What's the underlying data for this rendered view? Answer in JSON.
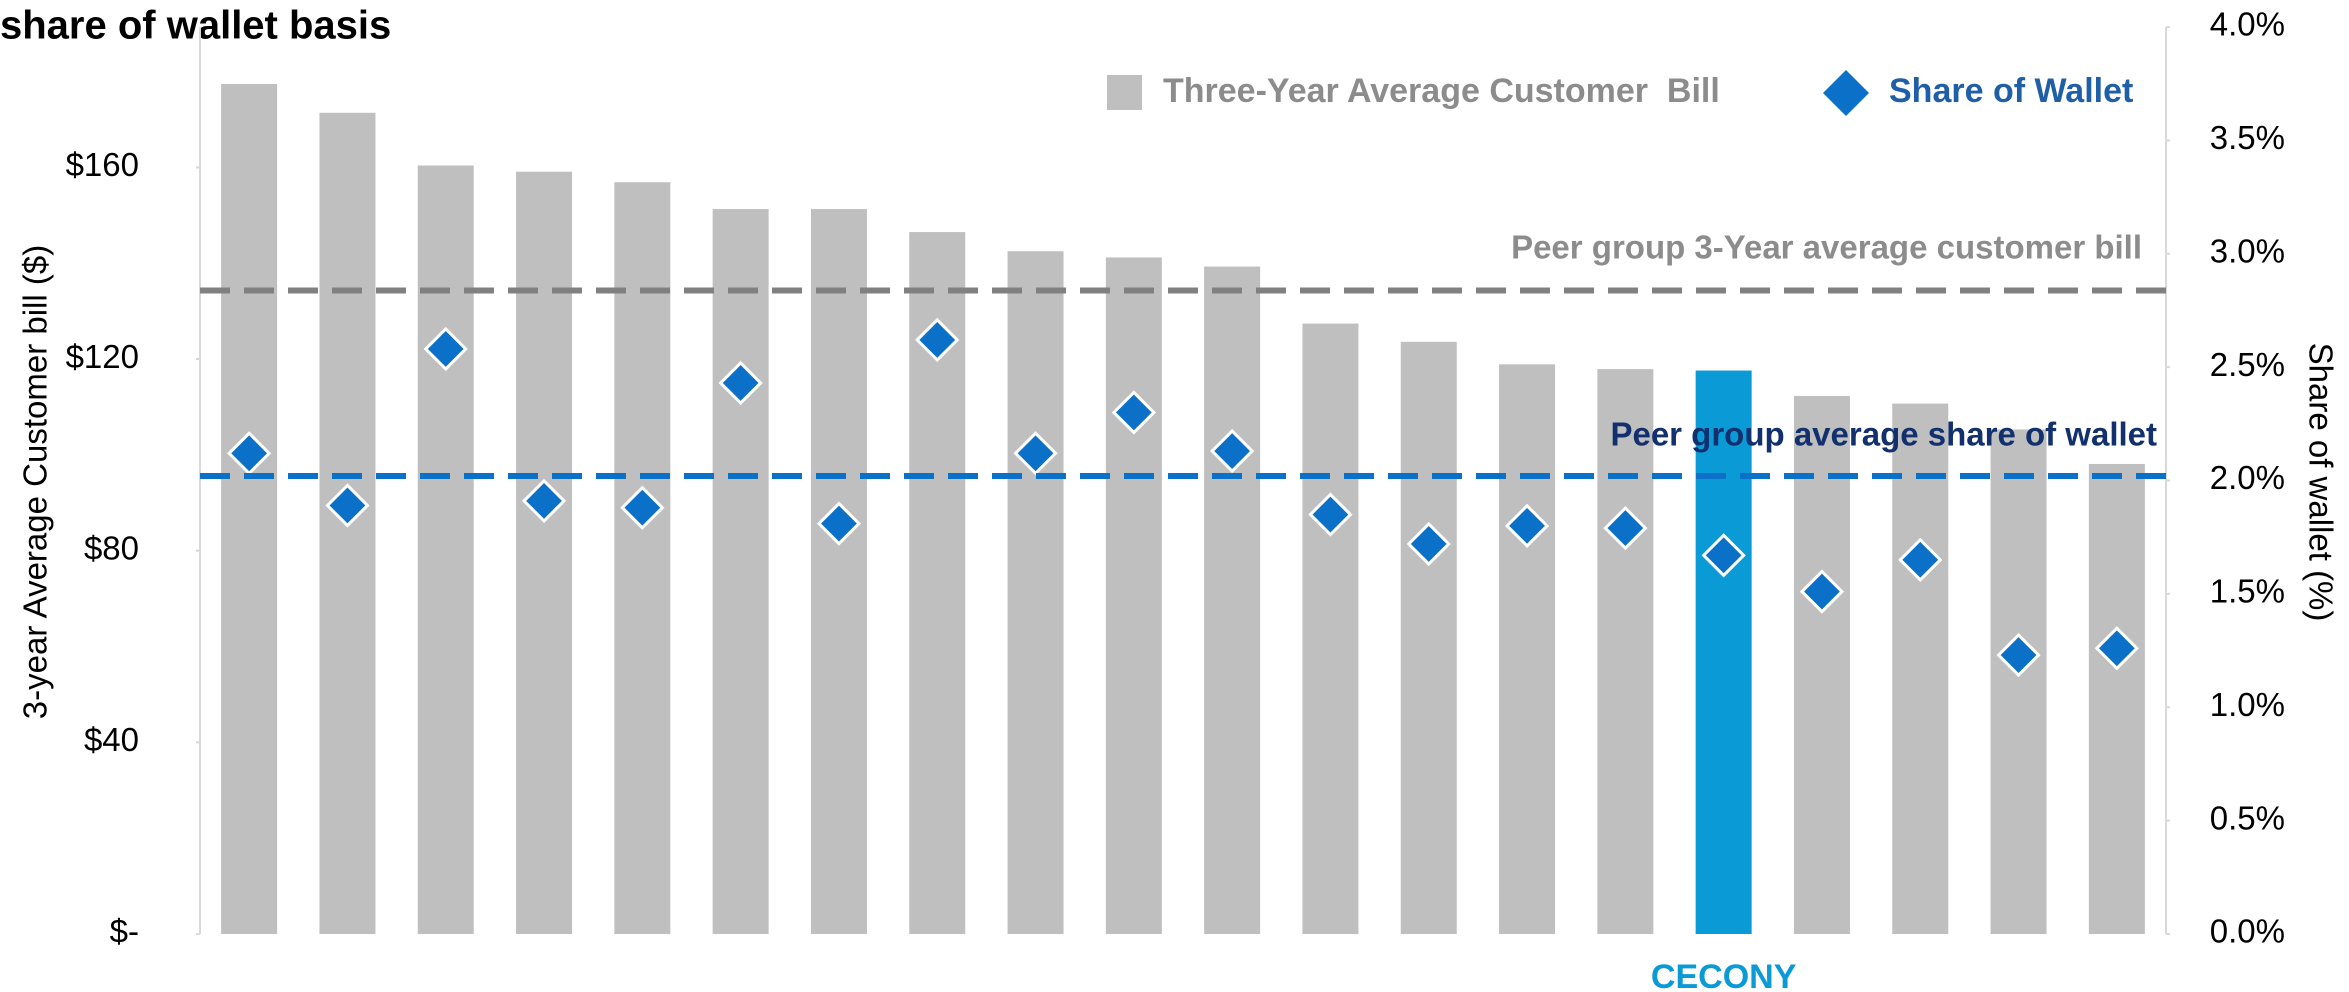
{
  "chart_data": {
    "type": "bar",
    "title": "share of wallet basis",
    "y_label": "3-year Average Customer bill ($)",
    "y2_label": "Share of wallet (%)",
    "categories": [
      null,
      null,
      null,
      null,
      null,
      null,
      null,
      null,
      null,
      null,
      null,
      null,
      null,
      null,
      null,
      "CECONY",
      null,
      null,
      null,
      null
    ],
    "series": [
      {
        "name": "Three-Year Average Customer  Bill",
        "type": "bar",
        "color": "#bfbfbf",
        "colors": [
          "#bfbfbf",
          "#bfbfbf",
          "#bfbfbf",
          "#bfbfbf",
          "#bfbfbf",
          "#bfbfbf",
          "#bfbfbf",
          "#bfbfbf",
          "#bfbfbf",
          "#bfbfbf",
          "#bfbfbf",
          "#bfbfbf",
          "#bfbfbf",
          "#bfbfbf",
          "#bfbfbf",
          "#0a9ad6",
          "#bfbfbf",
          "#bfbfbf",
          "#bfbfbf",
          "#bfbfbf"
        ],
        "legend_color": "#8c8c8c",
        "values": [
          177.4,
          171.4,
          160.4,
          159.1,
          156.9,
          151.3,
          151.3,
          146.5,
          142.5,
          141.2,
          139.3,
          127.4,
          123.6,
          118.9,
          117.9,
          117.6,
          112.3,
          110.7,
          105.3,
          98.1
        ]
      },
      {
        "name": "Share of Wallet",
        "type": "scatter",
        "axis": "y2",
        "color": "#0a70c8",
        "legend_color": "#1f5fa8",
        "values": [
          2.12,
          1.89,
          2.58,
          1.91,
          1.88,
          2.43,
          1.81,
          2.62,
          2.12,
          2.3,
          2.13,
          1.85,
          1.72,
          1.8,
          1.79,
          1.67,
          1.51,
          1.65,
          1.23,
          1.26
        ]
      }
    ],
    "reference_lines": [
      {
        "label": "Peer group 3-Year average customer bill",
        "value": 134.3,
        "color": "#808080",
        "label_color": "#8c8c8c"
      },
      {
        "label": "Peer group average share of wallet",
        "value": 2.02,
        "axis": "y2",
        "color": "#0a70c8",
        "label_color": "#12306e"
      }
    ],
    "ylim": [
      0,
      189.3
    ],
    "yticks": [
      {
        "value": 0,
        "label": "$-"
      },
      {
        "value": 40,
        "label": "$40"
      },
      {
        "value": 80,
        "label": "$80"
      },
      {
        "value": 120,
        "label": "$120"
      },
      {
        "value": 160,
        "label": "$160"
      }
    ],
    "y2lim": [
      0,
      4
    ],
    "y2ticks": [
      {
        "value": 0,
        "label": "0.0%"
      },
      {
        "value": 0.5,
        "label": "0.5%"
      },
      {
        "value": 1,
        "label": "1.0%"
      },
      {
        "value": 1.5,
        "label": "1.5%"
      },
      {
        "value": 2,
        "label": "2.0%"
      },
      {
        "value": 2.5,
        "label": "2.5%"
      },
      {
        "value": 3,
        "label": "3.0%"
      },
      {
        "value": 3.5,
        "label": "3.5%"
      },
      {
        "value": 4,
        "label": "4.0%"
      }
    ],
    "grid": false
  }
}
